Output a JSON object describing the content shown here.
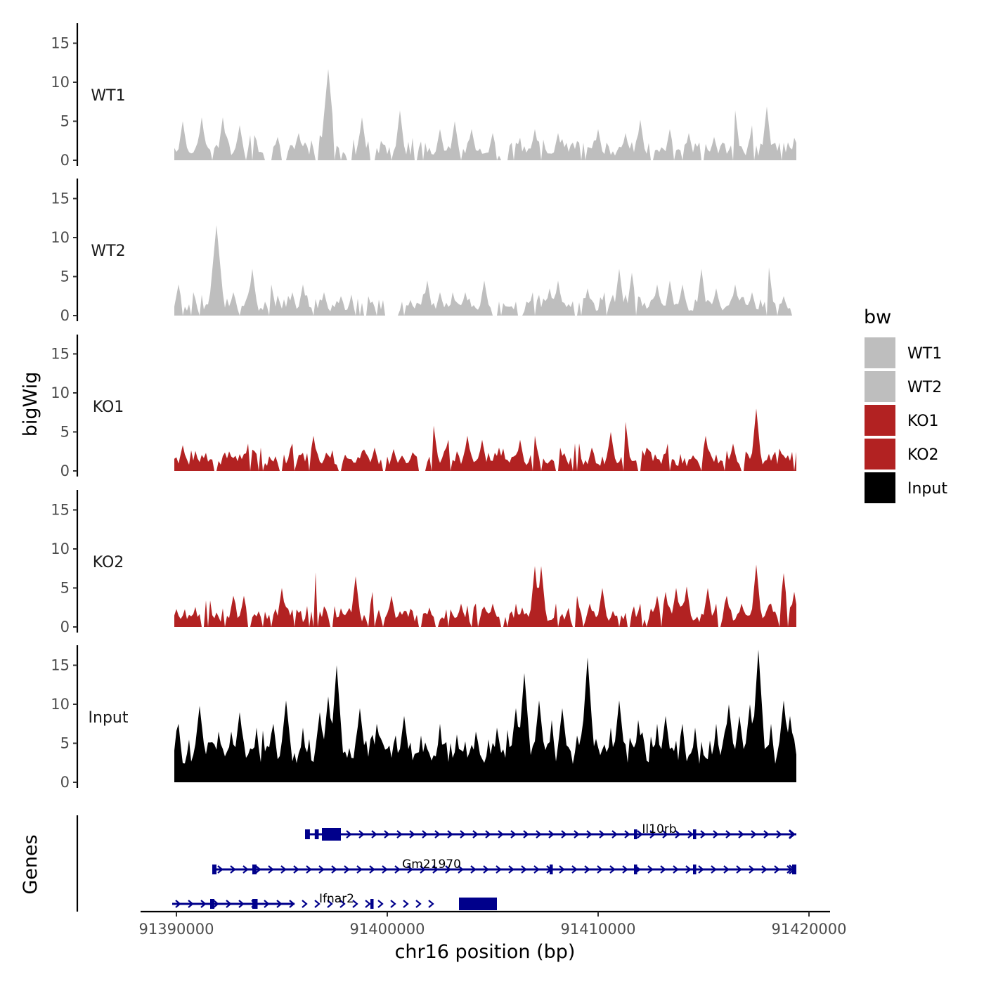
{
  "chart_data": {
    "type": "area",
    "chromosome": "chr16",
    "x_range": [
      91389900,
      91419400
    ],
    "y_range": [
      0,
      17.5
    ],
    "y_ticks": [
      0,
      5,
      10,
      15
    ],
    "y_tick_labels": [
      "0",
      "5",
      "10",
      "15"
    ],
    "x_ticks": [
      91390000,
      91400000,
      91410000,
      91420000
    ],
    "x_tick_labels": [
      "91390000",
      "91400000",
      "91410000",
      "91420000"
    ],
    "ylabel": "bigWig",
    "xlabel": "chr16 position (bp)",
    "genes_panel_label": "Genes",
    "legend": {
      "title": "bw",
      "items": [
        {
          "label": "WT1",
          "color": "#bebebe"
        },
        {
          "label": "WT2",
          "color": "#bebebe"
        },
        {
          "label": "KO1",
          "color": "#b22222"
        },
        {
          "label": "KO2",
          "color": "#b22222"
        },
        {
          "label": "Input",
          "color": "#000000"
        }
      ]
    },
    "series": [
      {
        "name": "WT1",
        "color": "#bebebe",
        "peaks": [
          [
            91390300,
            5.0
          ],
          [
            91391200,
            5.5
          ],
          [
            91392200,
            5.5
          ],
          [
            91393000,
            4.5
          ],
          [
            91393600,
            5.0
          ],
          [
            91394800,
            3.0
          ],
          [
            91395800,
            3.5
          ],
          [
            91396700,
            5.0
          ],
          [
            91397200,
            11.7
          ],
          [
            91398800,
            5.5
          ],
          [
            91400600,
            6.4
          ],
          [
            91401700,
            3.5
          ],
          [
            91402500,
            4.0
          ],
          [
            91403200,
            5.0
          ],
          [
            91404000,
            4.0
          ],
          [
            91405000,
            3.5
          ],
          [
            91406000,
            3.5
          ],
          [
            91407000,
            4.0
          ],
          [
            91408100,
            3.5
          ],
          [
            91409200,
            3.5
          ],
          [
            91410000,
            4.0
          ],
          [
            91411300,
            3.5
          ],
          [
            91412000,
            5.2
          ],
          [
            91413400,
            4.0
          ],
          [
            91414300,
            3.5
          ],
          [
            91415500,
            3.0
          ],
          [
            91416500,
            6.4
          ],
          [
            91417300,
            4.5
          ],
          [
            91418000,
            6.9
          ],
          [
            91418700,
            3.5
          ]
        ],
        "gaps": [
          [
            91394300,
            91394500
          ],
          [
            91395000,
            91395200
          ],
          [
            91398100,
            91398350
          ],
          [
            91399200,
            91399400
          ],
          [
            91405500,
            91405650
          ],
          [
            91412500,
            91412650
          ],
          [
            91414900,
            91415050
          ]
        ]
      },
      {
        "name": "WT2",
        "color": "#bebebe",
        "peaks": [
          [
            91390100,
            4.0
          ],
          [
            91390800,
            3.0
          ],
          [
            91391900,
            11.6
          ],
          [
            91392700,
            3.0
          ],
          [
            91393600,
            6.0
          ],
          [
            91394500,
            4.0
          ],
          [
            91395500,
            3.0
          ],
          [
            91396000,
            4.0
          ],
          [
            91397000,
            3.0
          ],
          [
            91397800,
            2.5
          ],
          [
            91399100,
            2.5
          ],
          [
            91401100,
            2.0
          ],
          [
            91401900,
            4.5
          ],
          [
            91402500,
            3.0
          ],
          [
            91403700,
            3.0
          ],
          [
            91404600,
            4.5
          ],
          [
            91406900,
            3.0
          ],
          [
            91407700,
            3.5
          ],
          [
            91408100,
            4.5
          ],
          [
            91409500,
            3.5
          ],
          [
            91410300,
            3.0
          ],
          [
            91411000,
            6.0
          ],
          [
            91411600,
            5.5
          ],
          [
            91412800,
            4.0
          ],
          [
            91413400,
            4.5
          ],
          [
            91414000,
            4.0
          ],
          [
            91414900,
            6.0
          ],
          [
            91415600,
            3.5
          ],
          [
            91416500,
            4.0
          ],
          [
            91417300,
            3.0
          ],
          [
            91418100,
            6.2
          ],
          [
            91418800,
            2.5
          ]
        ],
        "gaps": [
          [
            91399900,
            91400500
          ],
          [
            91405000,
            91405250
          ],
          [
            91406150,
            91406450
          ],
          [
            91419200,
            91419400
          ]
        ]
      },
      {
        "name": "KO1",
        "color": "#b22222",
        "peaks": [
          [
            91390300,
            3.3
          ],
          [
            91391000,
            1.5
          ],
          [
            91391600,
            1.5
          ],
          [
            91392500,
            2.5
          ],
          [
            91393400,
            3.5
          ],
          [
            91394000,
            3.0
          ],
          [
            91395000,
            3.3
          ],
          [
            91395500,
            3.5
          ],
          [
            91396500,
            4.5
          ],
          [
            91397200,
            2.0
          ],
          [
            91398000,
            2.0
          ],
          [
            91398800,
            2.5
          ],
          [
            91399400,
            3.0
          ],
          [
            91400300,
            2.8
          ],
          [
            91401200,
            1.5
          ],
          [
            91402200,
            5.8
          ],
          [
            91402900,
            4.0
          ],
          [
            91403800,
            4.5
          ],
          [
            91404500,
            4.0
          ],
          [
            91405300,
            3.0
          ],
          [
            91406300,
            4.0
          ],
          [
            91407000,
            4.5
          ],
          [
            91408200,
            3.0
          ],
          [
            91409000,
            5.5
          ],
          [
            91409700,
            3.0
          ],
          [
            91410600,
            5.0
          ],
          [
            91411300,
            6.3
          ],
          [
            91412300,
            3.0
          ],
          [
            91413300,
            3.5
          ],
          [
            91414500,
            2.0
          ],
          [
            91415100,
            4.5
          ],
          [
            91416400,
            3.5
          ],
          [
            91417000,
            2.5
          ],
          [
            91417500,
            8.0
          ],
          [
            91418300,
            2.0
          ],
          [
            91419000,
            2.0
          ],
          [
            91419300,
            3.8
          ]
        ],
        "gaps": [
          [
            91391800,
            91391950
          ],
          [
            91394850,
            91395000
          ],
          [
            91397700,
            91397850
          ],
          [
            91399800,
            91399950
          ],
          [
            91401550,
            91401800
          ],
          [
            91402050,
            91402150
          ],
          [
            91408000,
            91408150
          ],
          [
            91411900,
            91412000
          ],
          [
            91416800,
            91416950
          ]
        ]
      },
      {
        "name": "KO2",
        "color": "#b22222",
        "peaks": [
          [
            91390000,
            2.3
          ],
          [
            91390900,
            2.0
          ],
          [
            91391500,
            5.3
          ],
          [
            91392700,
            4.0
          ],
          [
            91393200,
            4.0
          ],
          [
            91393900,
            2.0
          ],
          [
            91395000,
            5.0
          ],
          [
            91395600,
            3.5
          ],
          [
            91396600,
            7.0
          ],
          [
            91398000,
            1.5
          ],
          [
            91398500,
            6.5
          ],
          [
            91399300,
            4.5
          ],
          [
            91400200,
            4.0
          ],
          [
            91401100,
            2.0
          ],
          [
            91402000,
            2.5
          ],
          [
            91402900,
            3.5
          ],
          [
            91403500,
            3.0
          ],
          [
            91404200,
            3.0
          ],
          [
            91405000,
            3.0
          ],
          [
            91405700,
            2.0
          ],
          [
            91406400,
            2.5
          ],
          [
            91407000,
            7.8
          ],
          [
            91407300,
            7.8
          ],
          [
            91408100,
            2.0
          ],
          [
            91409000,
            4.0
          ],
          [
            91409600,
            3.0
          ],
          [
            91410200,
            5.0
          ],
          [
            91411100,
            1.5
          ],
          [
            91412000,
            3.0
          ],
          [
            91412800,
            4.0
          ],
          [
            91413200,
            4.5
          ],
          [
            91413700,
            5.0
          ],
          [
            91414200,
            5.2
          ],
          [
            91415200,
            5.0
          ],
          [
            91415600,
            3.0
          ],
          [
            91416100,
            4.0
          ],
          [
            91416800,
            3.0
          ],
          [
            91417500,
            8.0
          ],
          [
            91418200,
            3.0
          ],
          [
            91418800,
            6.9
          ],
          [
            91419300,
            4.5
          ]
        ],
        "gaps": [
          [
            91391200,
            91391350
          ],
          [
            91393400,
            91393550
          ],
          [
            91394050,
            91394150
          ],
          [
            91397300,
            91397450
          ],
          [
            91401500,
            91401650
          ],
          [
            91402300,
            91402450
          ],
          [
            91405400,
            91405550
          ],
          [
            91408750,
            91408900
          ],
          [
            91410950,
            91411050
          ],
          [
            91411350,
            91411550
          ],
          [
            91415700,
            91415850
          ],
          [
            91418550,
            91418650
          ]
        ]
      },
      {
        "name": "Input",
        "color": "#000000",
        "peaks": [
          [
            91390100,
            7.5
          ],
          [
            91391100,
            9.8
          ],
          [
            91392000,
            6.5
          ],
          [
            91392600,
            6.5
          ],
          [
            91393000,
            9.0
          ],
          [
            91393800,
            7.0
          ],
          [
            91394600,
            7.5
          ],
          [
            91395200,
            10.5
          ],
          [
            91396000,
            7.0
          ],
          [
            91396800,
            9.0
          ],
          [
            91397200,
            11.0
          ],
          [
            91397600,
            15.0
          ],
          [
            91398700,
            9.5
          ],
          [
            91399500,
            7.5
          ],
          [
            91400800,
            8.5
          ],
          [
            91401600,
            6.0
          ],
          [
            91402500,
            7.5
          ],
          [
            91403300,
            6.0
          ],
          [
            91404200,
            6.5
          ],
          [
            91405200,
            7.0
          ],
          [
            91406100,
            9.5
          ],
          [
            91406500,
            14.0
          ],
          [
            91407200,
            10.5
          ],
          [
            91407800,
            8.0
          ],
          [
            91408300,
            9.5
          ],
          [
            91409000,
            6.0
          ],
          [
            91409500,
            16.0
          ],
          [
            91410600,
            7.0
          ],
          [
            91411000,
            10.5
          ],
          [
            91411900,
            8.0
          ],
          [
            91412800,
            7.5
          ],
          [
            91413200,
            8.5
          ],
          [
            91414000,
            7.5
          ],
          [
            91414600,
            7.0
          ],
          [
            91415600,
            7.5
          ],
          [
            91416200,
            10.0
          ],
          [
            91416700,
            8.5
          ],
          [
            91417200,
            10.0
          ],
          [
            91417600,
            17.0
          ],
          [
            91418200,
            7.5
          ],
          [
            91418800,
            10.5
          ],
          [
            91419100,
            8.5
          ],
          [
            91419300,
            5.5
          ]
        ],
        "gaps": []
      }
    ],
    "genes": [
      {
        "name": "Il10rb",
        "row": 0,
        "start": 91396100,
        "end": 91419400,
        "label_x": 91412900,
        "exons": [
          [
            91396100,
            91396330,
            "thin"
          ],
          [
            91396560,
            91396750,
            "thin"
          ],
          [
            91396900,
            91397800,
            "thick"
          ],
          [
            91411700,
            91411850,
            "thin"
          ],
          [
            91414500,
            91414650,
            "thin"
          ]
        ],
        "arrows_from": 91398200
      },
      {
        "name": "Gm21970",
        "row": 1,
        "start": 91391700,
        "end": 91419400,
        "label_x": 91402100,
        "exons": [
          [
            91391700,
            91391900,
            "thin"
          ],
          [
            91393600,
            91393800,
            "thin"
          ],
          [
            91407700,
            91407850,
            "thin"
          ],
          [
            91411700,
            91411850,
            "thin"
          ],
          [
            91414500,
            91414650,
            "thin"
          ],
          [
            91419200,
            91419400,
            "thin"
          ]
        ],
        "arrows_from": 91392100
      },
      {
        "name": "Ifnar2",
        "row": 2,
        "start": 91389800,
        "end": 91395600,
        "label_x": 91397600,
        "exons": [
          [
            91391600,
            91391800,
            "thin"
          ],
          [
            91393600,
            91393850,
            "thin"
          ],
          [
            91399200,
            91399350,
            "thin"
          ],
          [
            91403400,
            91405200,
            "thick"
          ]
        ],
        "arrows_from": 91390100
      }
    ]
  }
}
